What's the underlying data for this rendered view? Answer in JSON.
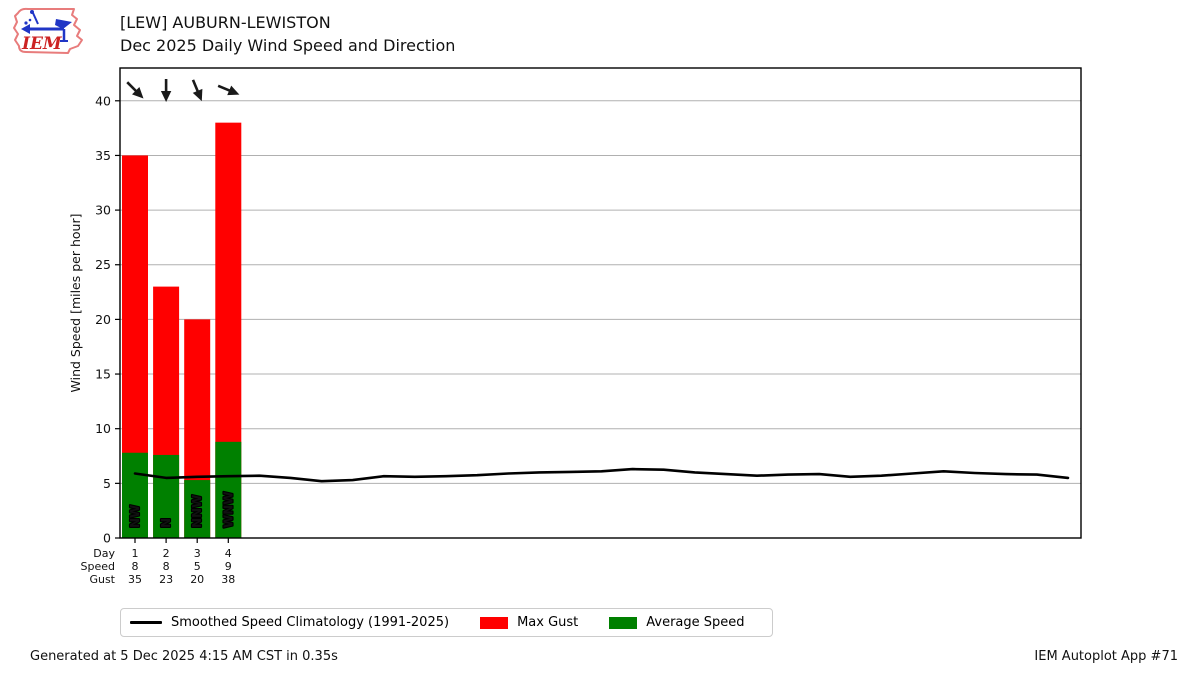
{
  "header": {
    "title_line1": "[LEW] AUBURN-LEWISTON",
    "title_line2": "Dec 2025 Daily Wind Speed and Direction"
  },
  "logo": {
    "text": "IEM"
  },
  "chart_data": {
    "type": "bar",
    "station": "[LEW] AUBURN-LEWISTON",
    "title": "Dec 2025 Daily Wind Speed and Direction",
    "ylabel": "Wind Speed [miles per hour]",
    "ylim": [
      0,
      43
    ],
    "yticks": [
      0,
      5,
      10,
      15,
      20,
      25,
      30,
      35,
      40
    ],
    "grid": "horizontal",
    "legend_position": "bottom",
    "row_headers": [
      "Day",
      "Speed",
      "Gust"
    ],
    "days": [
      "1",
      "2",
      "3",
      "4"
    ],
    "series": [
      {
        "name": "Max Gust",
        "color": "#ff0000",
        "values": [
          35,
          23,
          20,
          38
        ]
      },
      {
        "name": "Average Speed",
        "color": "#008000",
        "values": [
          7.8,
          7.6,
          5.3,
          8.8
        ]
      }
    ],
    "speed_row": [
      "8",
      "8",
      "5",
      "9"
    ],
    "gust_row": [
      "35",
      "23",
      "20",
      "38"
    ],
    "wind_directions": [
      "NW",
      "N",
      "NNW",
      "WNW"
    ],
    "climatology": {
      "name": "Smoothed Speed Climatology (1991-2025)",
      "color": "#000000",
      "day_span": [
        1,
        31
      ],
      "values": [
        5.9,
        5.5,
        5.6,
        5.65,
        5.7,
        5.5,
        5.2,
        5.3,
        5.65,
        5.6,
        5.65,
        5.75,
        5.9,
        6.0,
        6.05,
        6.1,
        6.3,
        6.25,
        6.0,
        5.85,
        5.7,
        5.8,
        5.85,
        5.6,
        5.7,
        5.9,
        6.1,
        5.95,
        5.85,
        5.8,
        5.5
      ]
    }
  },
  "legend": {
    "items": [
      {
        "swatch": "line",
        "color": "#000000",
        "label": "Smoothed Speed Climatology (1991-2025)"
      },
      {
        "swatch": "rect",
        "color": "#ff0000",
        "label": "Max Gust"
      },
      {
        "swatch": "rect",
        "color": "#008000",
        "label": "Average Speed"
      }
    ]
  },
  "footer": {
    "generated": "Generated at 5 Dec 2025 4:15 AM CST in 0.35s",
    "app": "IEM Autoplot App #71"
  }
}
